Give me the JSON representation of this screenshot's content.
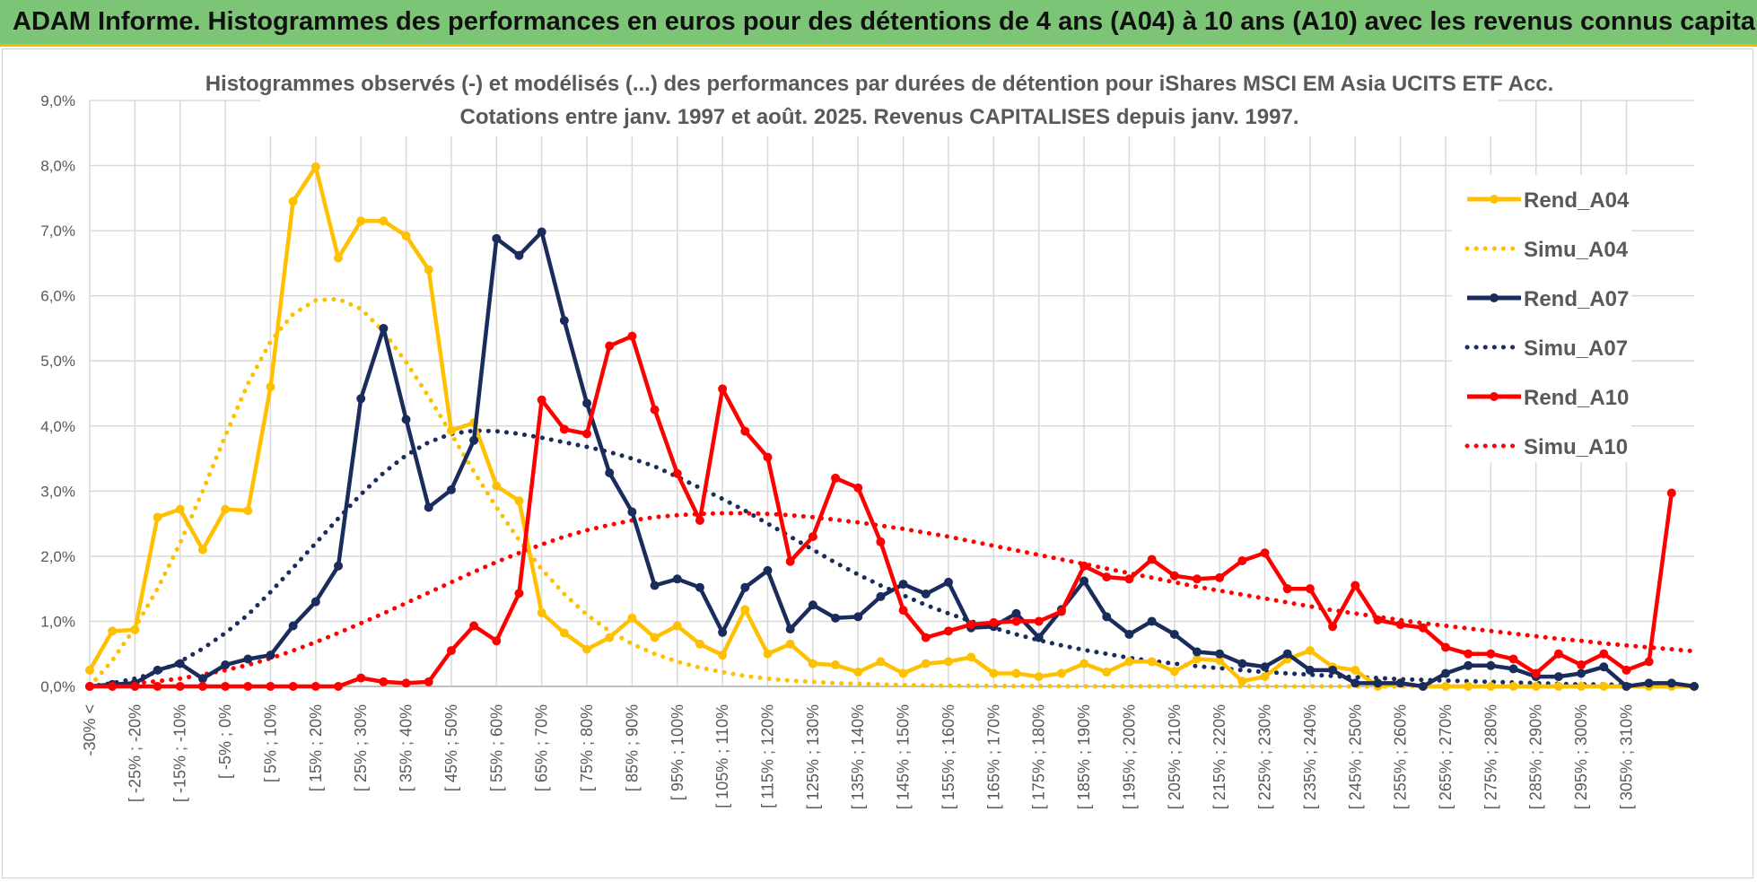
{
  "header": {
    "title": "ADAM Informe. Histogrammes des performances en euros pour des détentions de 4 ans (A04) à 10 ans (A10) avec les revenus connus capitalisés"
  },
  "chart_data": {
    "type": "line",
    "title": "Histogrammes observés (-) et modélisés (...) des performances par durées de détention pour iShares MSCI EM Asia UCITS ETF Acc.",
    "subtitle": "Cotations entre janv. 1997 et août. 2025. Revenus CAPITALISES depuis janv. 1997.",
    "xlabel": "",
    "ylabel": "",
    "ylim": [
      0,
      9
    ],
    "y_ticks": [
      "0,0%",
      "1,0%",
      "2,0%",
      "3,0%",
      "4,0%",
      "5,0%",
      "6,0%",
      "7,0%",
      "8,0%",
      "9,0%"
    ],
    "grid": true,
    "legend_position": "right",
    "x_tick_labels": [
      "-30% <",
      "[ -25% ; -20%",
      "[ -15% ; -10%",
      "[ -5% ; 0%",
      "[ 5% ; 10%",
      "[ 15% ; 20%",
      "[ 25% ; 30%",
      "[ 35% ; 40%",
      "[ 45% ; 50%",
      "[ 55% ; 60%",
      "[ 65% ; 70%",
      "[ 75% ; 80%",
      "[ 85% ; 90%",
      "[ 95% ; 100%",
      "[ 105% ; 110%",
      "[ 115% ; 120%",
      "[ 125% ; 130%",
      "[ 135% ; 140%",
      "[ 145% ; 150%",
      "[ 155% ; 160%",
      "[ 165% ; 170%",
      "[ 175% ; 180%",
      "[ 185% ; 190%",
      "[ 195% ; 200%",
      "[ 205% ; 210%",
      "[ 215% ; 220%",
      "[ 225% ; 230%",
      "[ 235% ; 240%",
      "[ 245% ; 250%",
      "[ 255% ; 260%",
      "[ 265% ; 270%",
      "[ 275% ; 280%",
      "[ 285% ; 290%",
      "[ 295% ; 300%",
      "[ 305% ; 310%"
    ],
    "series": [
      {
        "name": "Rend_A04",
        "color": "#ffc000",
        "style": "solid",
        "markers": true,
        "values": [
          0.25,
          0.85,
          0.87,
          2.6,
          2.72,
          2.1,
          2.72,
          2.7,
          4.6,
          7.45,
          7.98,
          6.58,
          7.15,
          7.15,
          6.92,
          6.4,
          3.93,
          4.05,
          3.08,
          2.85,
          1.13,
          0.82,
          0.57,
          0.75,
          1.05,
          0.75,
          0.93,
          0.65,
          0.48,
          1.18,
          0.5,
          0.65,
          0.35,
          0.33,
          0.22,
          0.38,
          0.2,
          0.35,
          0.38,
          0.45,
          0.2,
          0.2,
          0.15,
          0.2,
          0.35,
          0.22,
          0.38,
          0.38,
          0.23,
          0.42,
          0.4,
          0.08,
          0.15,
          0.42,
          0.55,
          0.3,
          0.25,
          0.0,
          0.05,
          0.0,
          0.0,
          0.0,
          0.0,
          0.0,
          0.0,
          0.0,
          0.0,
          0.0,
          0.0,
          0.0,
          0.0,
          0.0
        ]
      },
      {
        "name": "Simu_A04",
        "color": "#ffc000",
        "style": "dotted",
        "markers": false,
        "values": [
          0.0,
          0.4,
          0.9,
          1.5,
          2.2,
          3.0,
          3.85,
          4.65,
          5.3,
          5.72,
          5.93,
          5.95,
          5.8,
          5.45,
          4.98,
          4.45,
          3.88,
          3.3,
          2.75,
          2.25,
          1.8,
          1.42,
          1.1,
          0.85,
          0.65,
          0.5,
          0.38,
          0.29,
          0.22,
          0.16,
          0.12,
          0.09,
          0.07,
          0.05,
          0.04,
          0.03,
          0.02,
          0.015,
          0.01,
          0.008,
          0.006,
          0.005,
          0.004,
          0.003,
          0.002,
          0.0015,
          0.001,
          0.001,
          0.001,
          0.0,
          0.0,
          0.0,
          0.0,
          0.0,
          0.0,
          0.0,
          0.0,
          0.0,
          0.0,
          0.0,
          0.0,
          0.0,
          0.0,
          0.0,
          0.0,
          0.0,
          0.0,
          0.0,
          0.0,
          0.0,
          0.0,
          0.0
        ]
      },
      {
        "name": "Rend_A07",
        "color": "#1a2c5b",
        "style": "solid",
        "markers": true,
        "values": [
          0.0,
          0.03,
          0.05,
          0.25,
          0.35,
          0.12,
          0.33,
          0.42,
          0.48,
          0.93,
          1.3,
          1.85,
          4.42,
          5.5,
          4.1,
          2.75,
          3.02,
          3.78,
          6.88,
          6.62,
          6.98,
          5.62,
          4.35,
          3.28,
          2.68,
          1.55,
          1.65,
          1.52,
          0.83,
          1.52,
          1.78,
          0.88,
          1.25,
          1.05,
          1.07,
          1.38,
          1.57,
          1.42,
          1.6,
          0.9,
          0.92,
          1.12,
          0.75,
          1.18,
          1.62,
          1.07,
          0.8,
          1.0,
          0.8,
          0.53,
          0.5,
          0.35,
          0.3,
          0.5,
          0.25,
          0.25,
          0.05,
          0.05,
          0.05,
          0.0,
          0.2,
          0.32,
          0.32,
          0.27,
          0.15,
          0.15,
          0.2,
          0.3,
          0.0,
          0.05,
          0.05,
          0.0
        ]
      },
      {
        "name": "Simu_A07",
        "color": "#1a2c5b",
        "style": "dotted",
        "markers": false,
        "values": [
          0.0,
          0.05,
          0.12,
          0.22,
          0.38,
          0.58,
          0.82,
          1.1,
          1.45,
          1.82,
          2.2,
          2.58,
          2.95,
          3.28,
          3.55,
          3.75,
          3.88,
          3.93,
          3.92,
          3.88,
          3.82,
          3.75,
          3.68,
          3.6,
          3.5,
          3.38,
          3.22,
          3.05,
          2.88,
          2.7,
          2.5,
          2.3,
          2.1,
          1.9,
          1.72,
          1.55,
          1.4,
          1.25,
          1.12,
          1.0,
          0.9,
          0.8,
          0.71,
          0.63,
          0.56,
          0.5,
          0.44,
          0.39,
          0.35,
          0.31,
          0.28,
          0.25,
          0.22,
          0.2,
          0.18,
          0.16,
          0.14,
          0.13,
          0.11,
          0.1,
          0.09,
          0.08,
          0.07,
          0.06,
          0.05,
          0.04,
          0.03,
          0.03,
          0.02,
          0.02,
          0.01,
          0.01
        ]
      },
      {
        "name": "Rend_A10",
        "color": "#ff0000",
        "style": "solid",
        "markers": true,
        "values": [
          0.0,
          0.0,
          0.0,
          0.0,
          0.0,
          0.0,
          0.0,
          0.0,
          0.0,
          0.0,
          0.0,
          0.0,
          0.13,
          0.07,
          0.05,
          0.07,
          0.55,
          0.93,
          0.7,
          1.43,
          4.4,
          3.95,
          3.88,
          5.23,
          5.38,
          4.25,
          3.27,
          2.55,
          4.57,
          3.92,
          3.52,
          1.92,
          2.3,
          3.2,
          3.05,
          2.22,
          1.17,
          0.75,
          0.85,
          0.95,
          0.98,
          1.0,
          1.0,
          1.15,
          1.85,
          1.68,
          1.65,
          1.95,
          1.7,
          1.65,
          1.67,
          1.93,
          2.05,
          1.5,
          1.5,
          0.92,
          1.55,
          1.02,
          0.95,
          0.9,
          0.6,
          0.5,
          0.5,
          0.42,
          0.2,
          0.5,
          0.33,
          0.5,
          0.25,
          0.38,
          2.97
        ]
      },
      {
        "name": "Simu_A10",
        "color": "#ff0000",
        "style": "dotted",
        "markers": false,
        "values": [
          0.0,
          0.02,
          0.05,
          0.08,
          0.12,
          0.18,
          0.25,
          0.33,
          0.43,
          0.55,
          0.68,
          0.82,
          0.97,
          1.12,
          1.28,
          1.44,
          1.6,
          1.76,
          1.91,
          2.05,
          2.18,
          2.3,
          2.4,
          2.48,
          2.55,
          2.6,
          2.63,
          2.65,
          2.66,
          2.66,
          2.65,
          2.63,
          2.6,
          2.56,
          2.52,
          2.47,
          2.42,
          2.36,
          2.3,
          2.23,
          2.16,
          2.09,
          2.02,
          1.95,
          1.88,
          1.81,
          1.74,
          1.67,
          1.6,
          1.53,
          1.47,
          1.41,
          1.35,
          1.29,
          1.23,
          1.17,
          1.12,
          1.07,
          1.02,
          0.97,
          0.93,
          0.89,
          0.85,
          0.81,
          0.77,
          0.73,
          0.7,
          0.66,
          0.63,
          0.6,
          0.57,
          0.54
        ]
      }
    ]
  }
}
